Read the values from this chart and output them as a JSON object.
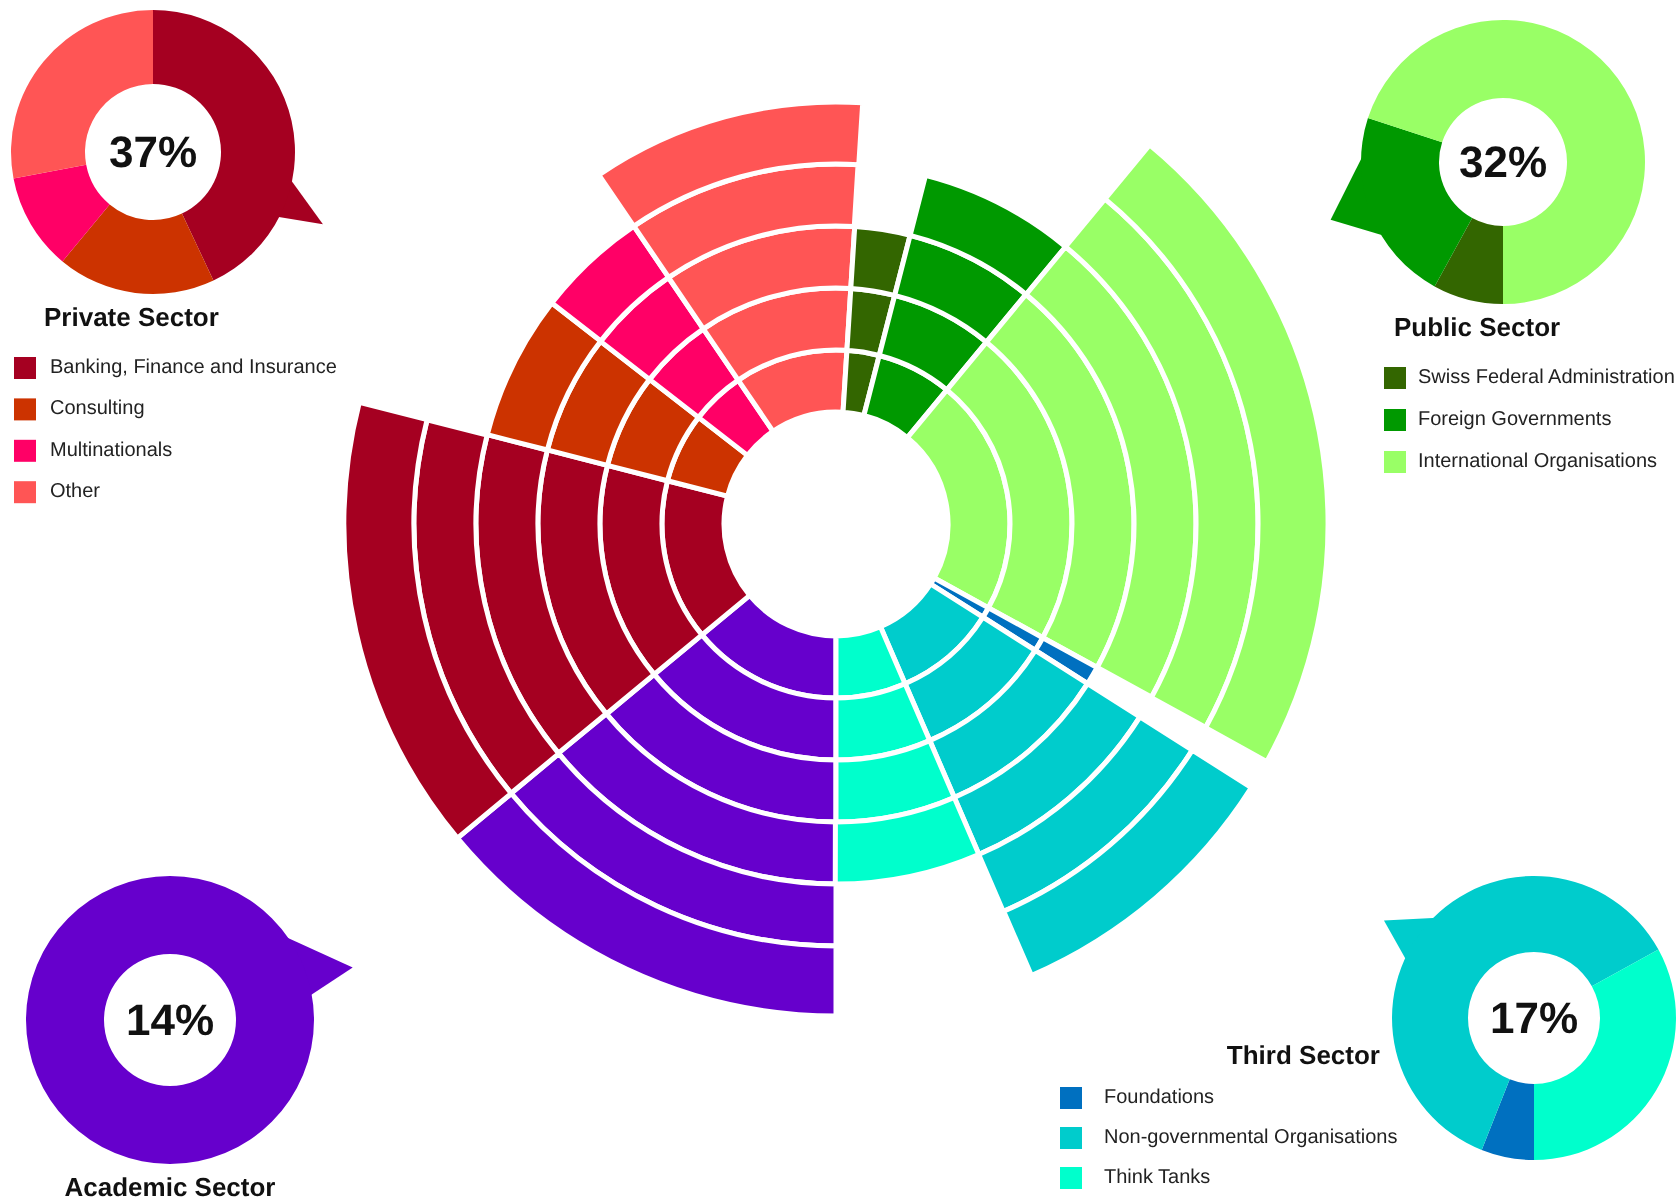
{
  "chart_data": [
    {
      "type": "donut",
      "title": "Private Sector",
      "annotations": [
        "37%"
      ],
      "categories": [
        "Banking, Finance and Insurance",
        "Consulting",
        "Multinationals",
        "Other"
      ],
      "values": [
        43,
        18,
        11,
        28
      ],
      "colors": [
        "#a50021",
        "#cc3300",
        "#ff0066",
        "#ff5555"
      ],
      "legend": "bottom"
    },
    {
      "type": "donut",
      "title": "Public Sector",
      "annotations": [
        "32%"
      ],
      "categories": [
        "Swiss Federal Administration",
        "Foreign Governments",
        "International Organisations"
      ],
      "values": [
        8,
        22,
        70
      ],
      "colors": [
        "#336600",
        "#009900",
        "#99ff66"
      ],
      "legend": "bottom"
    },
    {
      "type": "donut",
      "categories": [
        null,
        null,
        null,
        null,
        null,
        null,
        null,
        null,
        null,
        null,
        null
      ],
      "colors": [
        "#6600cc",
        "#a50021",
        "#cc3300",
        "#ff0066",
        "#ff5555",
        "#336600",
        "#009900",
        "#99ff66",
        "#0070c0",
        "#00cccc",
        "#00ffcc"
      ],
      "series": [
        {
          "values": [
            14,
            15,
            6.5,
            5,
            10.5,
            3,
            7,
            22,
            1,
            9.5,
            6.5
          ]
        },
        {
          "values": [
            14,
            15,
            6.5,
            5,
            10.5,
            3,
            7,
            22,
            1,
            9.5,
            6.5
          ]
        },
        {
          "values": [
            14,
            15,
            6.5,
            5,
            10.5,
            3,
            7,
            22,
            1,
            9.5,
            6.5
          ]
        },
        {
          "values": [
            14.6,
            15.6,
            6.8,
            5.2,
            10.9,
            null,
            7.3,
            22.9,
            null,
            9.9,
            6.8
          ]
        },
        {
          "values": [
            19.7,
            21.1,
            null,
            null,
            14.8,
            null,
            null,
            31,
            null,
            13.4,
            null
          ]
        },
        {
          "values": [
            23.1,
            24.8,
            null,
            null,
            null,
            null,
            null,
            36.4,
            null,
            15.7,
            null
          ]
        }
      ]
    },
    {
      "type": "donut",
      "title": "Academic Sector",
      "annotations": [
        "14%"
      ],
      "categories": [
        null
      ],
      "values": [
        100
      ],
      "colors": [
        "#6600cc"
      ]
    },
    {
      "type": "donut",
      "title": "Third Sector",
      "annotations": [
        "17%"
      ],
      "categories": [
        "Foundations",
        "Non-governmental Organisations",
        "Think Tanks"
      ],
      "values": [
        6,
        61,
        33
      ],
      "colors": [
        "#0070c0",
        "#00cccc",
        "#00ffcc"
      ],
      "legend": "left"
    }
  ]
}
